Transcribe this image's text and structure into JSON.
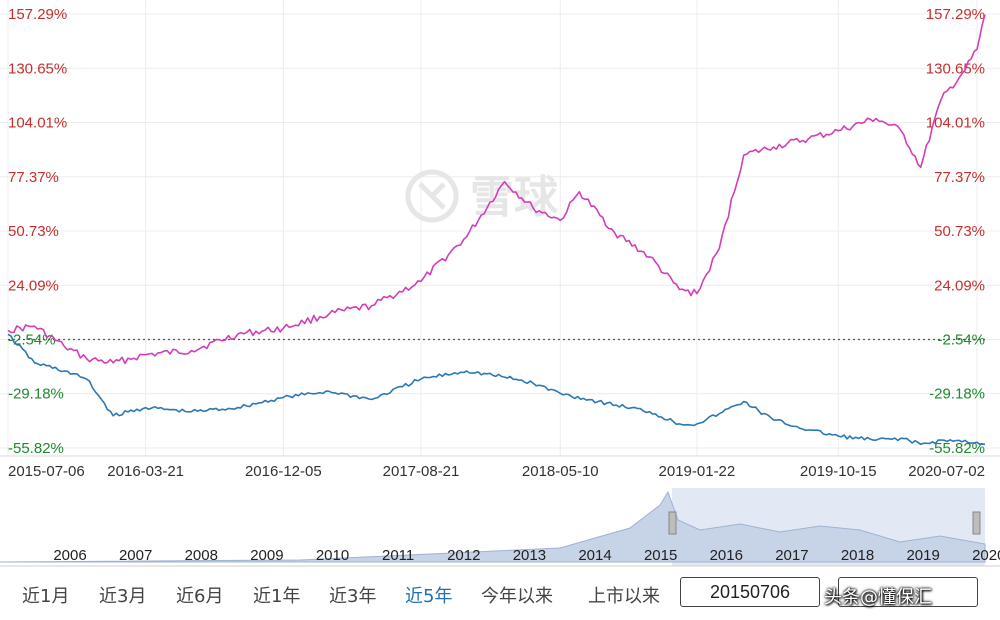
{
  "watermark": {
    "text": "雪球",
    "logo_icon": "snowball-logo-icon"
  },
  "chart_data": {
    "type": "line",
    "y_axis": {
      "tick_labels": [
        "157.29%",
        "130.65%",
        "104.01%",
        "77.37%",
        "50.73%",
        "24.09%",
        "-2.54%",
        "-29.18%",
        "-55.82%"
      ],
      "ticks": [
        157.29,
        130.65,
        104.01,
        77.37,
        50.73,
        24.09,
        -2.54,
        -29.18,
        -55.82
      ],
      "ylim": [
        -62,
        162
      ],
      "baseline": -2.54,
      "positive_color": "#c62f2f",
      "negative_color": "#1f8a2e"
    },
    "x_axis": {
      "tick_labels": [
        "2015-07-06",
        "2016-03-21",
        "2016-12-05",
        "2017-08-21",
        "2018-05-10",
        "2019-01-22",
        "2019-10-15",
        "2020-07-02"
      ],
      "start_date": "2015-07-06",
      "end_date": "2020-07-17"
    },
    "grid": true,
    "series": [
      {
        "color": "#d43dba",
        "points": [
          [
            "2015-07-06",
            2
          ],
          [
            "2015-08-25",
            4
          ],
          [
            "2015-10-20",
            -6
          ],
          [
            "2015-12-01",
            -12
          ],
          [
            "2016-01-20",
            -14
          ],
          [
            "2016-03-21",
            -10
          ],
          [
            "2016-06-15",
            -8
          ],
          [
            "2016-09-10",
            0
          ],
          [
            "2016-12-05",
            3
          ],
          [
            "2017-03-01",
            10
          ],
          [
            "2017-05-20",
            14
          ],
          [
            "2017-08-21",
            26
          ],
          [
            "2017-11-15",
            48
          ],
          [
            "2018-01-25",
            75
          ],
          [
            "2018-03-20",
            62
          ],
          [
            "2018-05-10",
            56
          ],
          [
            "2018-06-15",
            70
          ],
          [
            "2018-08-20",
            50
          ],
          [
            "2018-10-25",
            38
          ],
          [
            "2018-12-20",
            22
          ],
          [
            "2019-01-22",
            20
          ],
          [
            "2019-03-05",
            42
          ],
          [
            "2019-04-20",
            88
          ],
          [
            "2019-06-15",
            92
          ],
          [
            "2019-08-20",
            96
          ],
          [
            "2019-10-15",
            100
          ],
          [
            "2019-12-25",
            106
          ],
          [
            "2020-02-10",
            100
          ],
          [
            "2020-03-18",
            82
          ],
          [
            "2020-04-25",
            115
          ],
          [
            "2020-06-10",
            130
          ],
          [
            "2020-07-02",
            140
          ],
          [
            "2020-07-17",
            157
          ]
        ]
      },
      {
        "color": "#2b78b5",
        "points": [
          [
            "2015-07-06",
            0
          ],
          [
            "2015-08-25",
            -14
          ],
          [
            "2015-10-20",
            -18
          ],
          [
            "2015-12-01",
            -22
          ],
          [
            "2016-01-20",
            -40
          ],
          [
            "2016-03-21",
            -36
          ],
          [
            "2016-06-15",
            -38
          ],
          [
            "2016-09-10",
            -36
          ],
          [
            "2016-12-05",
            -31
          ],
          [
            "2017-03-01",
            -28
          ],
          [
            "2017-05-20",
            -32
          ],
          [
            "2017-08-21",
            -22
          ],
          [
            "2017-11-15",
            -18
          ],
          [
            "2018-01-25",
            -21
          ],
          [
            "2018-03-20",
            -24
          ],
          [
            "2018-05-10",
            -29
          ],
          [
            "2018-07-20",
            -33
          ],
          [
            "2018-10-25",
            -38
          ],
          [
            "2018-12-20",
            -44
          ],
          [
            "2019-01-22",
            -44
          ],
          [
            "2019-03-05",
            -39
          ],
          [
            "2019-04-20",
            -33
          ],
          [
            "2019-06-15",
            -42
          ],
          [
            "2019-08-20",
            -47
          ],
          [
            "2019-10-15",
            -50
          ],
          [
            "2019-12-25",
            -52
          ],
          [
            "2020-02-10",
            -51
          ],
          [
            "2020-03-18",
            -54
          ],
          [
            "2020-05-01",
            -52
          ],
          [
            "2020-07-02",
            -53
          ],
          [
            "2020-07-17",
            -54
          ]
        ]
      }
    ]
  },
  "navigator": {
    "year_labels": [
      "2006",
      "2007",
      "2008",
      "2009",
      "2010",
      "2011",
      "2012",
      "2013",
      "2014",
      "2015",
      "2016",
      "2017",
      "2018",
      "2019",
      "2020"
    ],
    "area_color": "#c7d3e6",
    "selection_color": "#e2e9f4"
  },
  "toolbar": {
    "ranges": [
      {
        "label": "近1月",
        "active": false
      },
      {
        "label": "近3月",
        "active": false
      },
      {
        "label": "近6月",
        "active": false
      },
      {
        "label": "近1年",
        "active": false
      },
      {
        "label": "近3年",
        "active": false
      },
      {
        "label": "近5年",
        "active": true
      },
      {
        "label": "今年以来",
        "active": false
      },
      {
        "label": "上市以来",
        "active": false
      }
    ],
    "start_date": "20150706",
    "credit": "头条@懂保汇"
  }
}
